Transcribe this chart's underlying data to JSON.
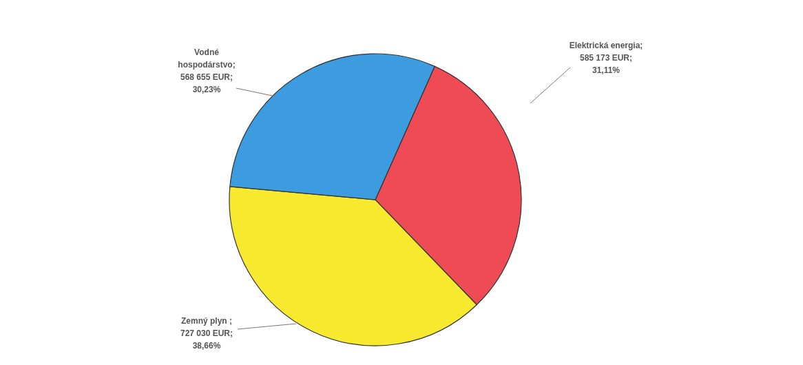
{
  "chart_data": {
    "type": "pie",
    "categories": [
      "Elektrická energia; 585 173 EUR; 31,11%",
      "Zemný plyn ; 727 030 EUR; 38,66%",
      "Vodné hospodárstvo; 568 655 EUR; 30,23%"
    ],
    "values": [
      585173,
      727030,
      568655
    ],
    "colors": [
      "#ee4b55",
      "#f7e92e",
      "#3d9be0"
    ]
  }
}
